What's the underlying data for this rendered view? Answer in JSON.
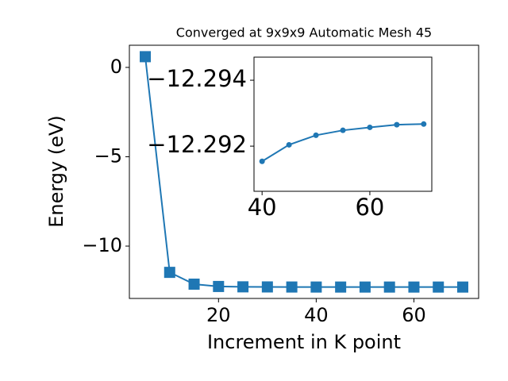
{
  "chart_data": [
    {
      "type": "line",
      "title": "Converged at 9x9x9 Automatic Mesh 45",
      "x_label": "Increment in K point",
      "y_label": "Energy (eV)",
      "marker": "square",
      "color": "#1f77b4",
      "x": [
        5,
        10,
        15,
        20,
        25,
        30,
        35,
        40,
        45,
        50,
        55,
        60,
        65,
        70
      ],
      "values": [
        0.6,
        -11.47,
        -12.13,
        -12.26,
        -12.28,
        -12.285,
        -12.29,
        -12.29154,
        -12.29204,
        -12.29233,
        -12.29248,
        -12.29257,
        -12.29265,
        -12.29267
      ],
      "xlim": [
        1.75,
        73.25
      ],
      "ylim": [
        -12.93,
        1.24
      ],
      "xticks": [
        20,
        40,
        60
      ],
      "yticks": [
        {
          "value": -10,
          "label": "−10"
        },
        {
          "value": -5,
          "label": "−5"
        },
        0
      ]
    },
    {
      "type": "line",
      "marker": "circle",
      "color": "#1f77b4",
      "x": [
        40,
        45,
        50,
        55,
        60,
        65,
        70
      ],
      "values": [
        -12.29154,
        -12.29204,
        -12.29233,
        -12.29248,
        -12.29257,
        -12.29265,
        -12.29267
      ],
      "xlim": [
        38.5,
        71.5
      ],
      "ylim": [
        -12.29063,
        -12.2947
      ],
      "xticks": [
        40,
        60
      ],
      "yticks": [
        {
          "value": -12.292,
          "label": "−12.292"
        },
        {
          "value": -12.294,
          "label": "−12.294"
        }
      ]
    }
  ]
}
